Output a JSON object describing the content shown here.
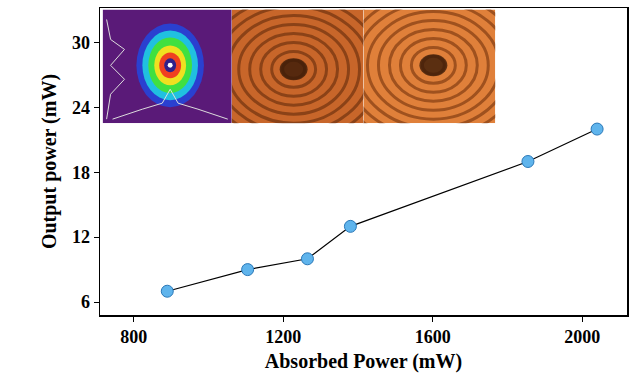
{
  "chart_data": {
    "type": "line",
    "x_label": "Absorbed Power (mW)",
    "y_label": "Output power (mW)",
    "x": [
      890,
      1105,
      1265,
      1380,
      1855,
      2040
    ],
    "values": [
      7,
      9,
      10,
      13,
      19,
      22
    ],
    "color": "#5fb4ec",
    "marker": "circle",
    "line_style": "solid",
    "xlim": [
      710,
      2120
    ],
    "xticks": [
      800,
      1200,
      1600,
      2000
    ],
    "ylim": [
      4.8,
      33.2
    ],
    "yticks": [
      6,
      12,
      18,
      24,
      30
    ],
    "grid": false
  }
}
